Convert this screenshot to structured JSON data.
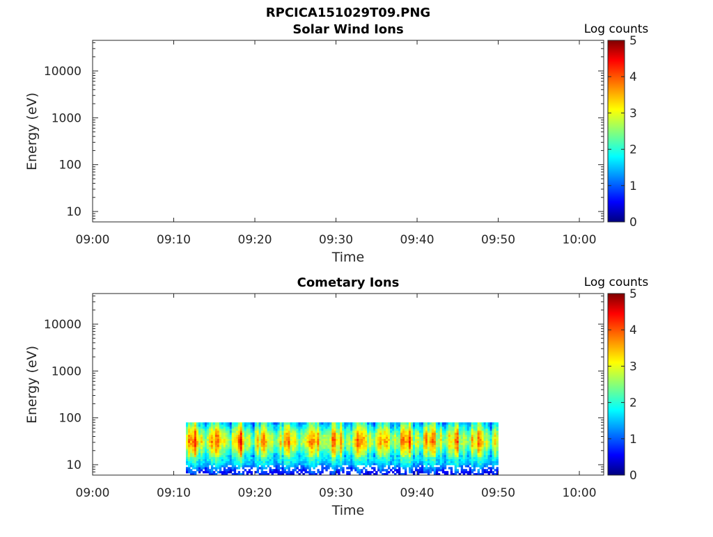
{
  "figure_title": "RPCICA151029T09.PNG",
  "chart_data": [
    {
      "type": "heatmap",
      "title": "Solar Wind Ions",
      "xlabel": "Time",
      "ylabel": "Energy (eV)",
      "x_ticks": [
        "09:00",
        "09:10",
        "09:20",
        "09:30",
        "09:40",
        "09:50",
        "10:00"
      ],
      "xlim": [
        "09:00",
        "10:03"
      ],
      "y_scale": "log",
      "y_ticks": [
        10,
        100,
        1000,
        10000
      ],
      "ylim": [
        6,
        45000
      ],
      "colorbar": {
        "label": "Log counts",
        "range": [
          0,
          5
        ],
        "ticks": [
          0,
          1,
          2,
          3,
          4,
          5
        ],
        "colormap": "jet"
      },
      "data": "empty"
    },
    {
      "type": "heatmap",
      "title": "Cometary Ions",
      "xlabel": "Time",
      "ylabel": "Energy (eV)",
      "x_ticks": [
        "09:00",
        "09:10",
        "09:20",
        "09:30",
        "09:40",
        "09:50",
        "10:00"
      ],
      "xlim": [
        "09:00",
        "10:03"
      ],
      "y_scale": "log",
      "y_ticks": [
        10,
        100,
        1000,
        10000
      ],
      "ylim": [
        6,
        45000
      ],
      "colorbar": {
        "label": "Log counts",
        "range": [
          0,
          5
        ],
        "ticks": [
          0,
          1,
          2,
          3,
          4,
          5
        ],
        "colormap": "jet"
      },
      "data_extent": {
        "time": [
          "09:11",
          "09:50"
        ],
        "energy_eV": [
          6,
          80
        ]
      },
      "profile": {
        "energy_eV": [
          6,
          8,
          10,
          14,
          20,
          30,
          45,
          65,
          80
        ],
        "log_counts": [
          0.6,
          1.0,
          1.6,
          2.0,
          2.6,
          3.2,
          2.9,
          2.2,
          1.8
        ]
      }
    }
  ]
}
